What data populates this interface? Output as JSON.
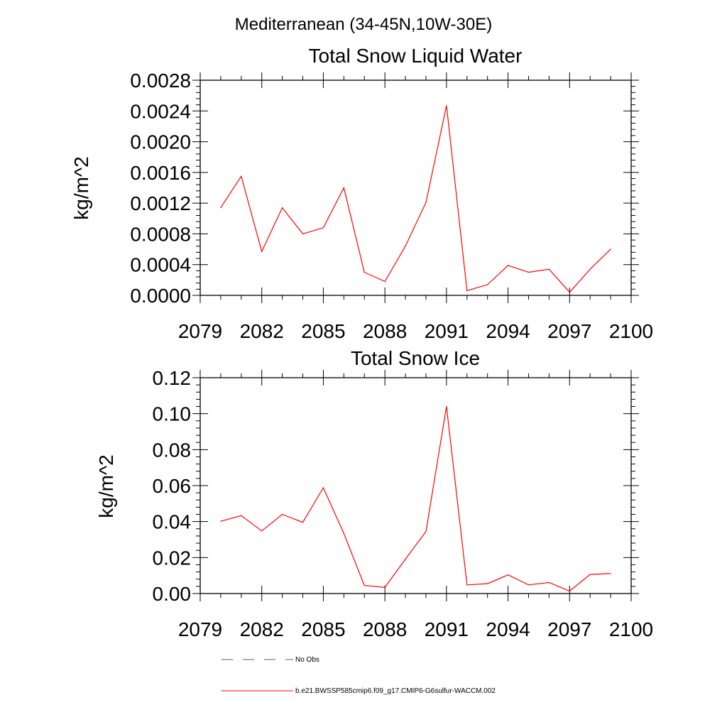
{
  "figure": {
    "region_title": "Mediterranean (34-45N,10W-30E)"
  },
  "chart_data": [
    {
      "type": "line",
      "title": "Total Snow Liquid Water",
      "xlabel": "",
      "ylabel": "kg/m^2",
      "xlim": [
        2079,
        2100
      ],
      "ylim": [
        0,
        0.0028
      ],
      "xticks": [
        "2079",
        "2082",
        "2085",
        "2088",
        "2091",
        "2094",
        "2097",
        "2100"
      ],
      "yticks": [
        "0.0000",
        "0.0004",
        "0.0008",
        "0.0012",
        "0.0016",
        "0.0020",
        "0.0024",
        "0.0028"
      ],
      "x": [
        2080,
        2081,
        2082,
        2083,
        2084,
        2085,
        2086,
        2087,
        2088,
        2089,
        2090,
        2091,
        2092,
        2093,
        2094,
        2095,
        2096,
        2097,
        2098,
        2099
      ],
      "series": [
        {
          "name": "b.e21.BWSSP585cmip6.f09_g17.CMIP6-G6sulfur-WACCM.002",
          "color": "#ff0000",
          "values": [
            0.00114,
            0.00155,
            0.00057,
            0.00114,
            0.0008,
            0.00088,
            0.0014,
            0.0003,
            0.00018,
            0.00064,
            0.00121,
            0.00247,
            6e-05,
            0.00014,
            0.00039,
            0.0003,
            0.00034,
            4e-05,
            0.00034,
            0.0006
          ]
        }
      ],
      "grid": false
    },
    {
      "type": "line",
      "title": "Total Snow Ice",
      "xlabel": "",
      "ylabel": "kg/m^2",
      "xlim": [
        2079,
        2100
      ],
      "ylim": [
        0,
        0.12
      ],
      "xticks": [
        "2079",
        "2082",
        "2085",
        "2088",
        "2091",
        "2094",
        "2097",
        "2100"
      ],
      "yticks": [
        "0.00",
        "0.02",
        "0.04",
        "0.06",
        "0.08",
        "0.10",
        "0.12"
      ],
      "x": [
        2080,
        2081,
        2082,
        2083,
        2084,
        2085,
        2086,
        2087,
        2088,
        2089,
        2090,
        2091,
        2092,
        2093,
        2094,
        2095,
        2096,
        2097,
        2098,
        2099
      ],
      "series": [
        {
          "name": "b.e21.BWSSP585cmip6.f09_g17.CMIP6-G6sulfur-WACCM.002",
          "color": "#ff0000",
          "values": [
            0.0402,
            0.0433,
            0.0348,
            0.044,
            0.0396,
            0.0588,
            0.0334,
            0.0045,
            0.0034,
            0.0191,
            0.0345,
            0.104,
            0.0048,
            0.0055,
            0.0104,
            0.0048,
            0.0061,
            0.0014,
            0.0106,
            0.0111
          ]
        }
      ],
      "grid": false
    }
  ],
  "legend": {
    "placement": "bottom-left",
    "entries": [
      {
        "label": "No Obs",
        "color": "#5a5a9a",
        "style": "dashed"
      },
      {
        "label": "b.e21.BWSSP585cmip6.f09_g17.CMIP6-G6sulfur-WACCM.002",
        "color": "#ff0000",
        "style": "solid"
      }
    ]
  }
}
